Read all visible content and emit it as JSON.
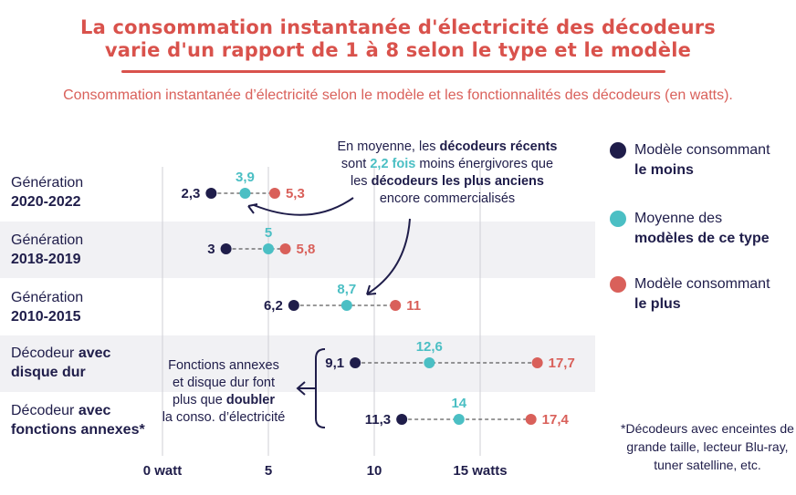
{
  "title_line1": "La consommation instantanée d'électricité des décodeurs",
  "title_line2": "varie d'un rapport de 1 à 8 selon le type et le modèle",
  "subtitle": "Consommation instantanée d’électricité selon le modèle et les fonctionnalités des décodeurs (en watts).",
  "colors": {
    "min": "#1f1d4a",
    "avg": "#4bbfc4",
    "max": "#d9605a",
    "title": "#d9524c",
    "band": "#f1f1f4"
  },
  "rows": [
    {
      "label_a": "Génération",
      "label_b": "2020-2022"
    },
    {
      "label_a": "Génération",
      "label_b": "2018-2019"
    },
    {
      "label_a": "Génération",
      "label_b": "2010-2015"
    },
    {
      "label_a": "Décodeur ",
      "label_a_bold": "avec",
      "label_b": "disque dur"
    },
    {
      "label_a": "Décodeur ",
      "label_a_bold": "avec",
      "label_b": "fonctions annexes*"
    }
  ],
  "legend": [
    {
      "line1": "Modèle consommant",
      "line2": "le moins",
      "bold": 2
    },
    {
      "line1": "Moyenne des",
      "line2": "modèles de ce type",
      "bold": 2
    },
    {
      "line1": "Modèle consommant",
      "line2": "le plus",
      "bold": 2
    }
  ],
  "annotation_top": {
    "p1": "En moyenne, les ",
    "b1": "décodeurs récents",
    "p2": "sont ",
    "t1": "2,2 fois",
    "p3": " moins énergivores que",
    "p4": "les ",
    "b2": "décodeurs les plus anciens",
    "p5": "encore commercialisés"
  },
  "annotation_bottom": {
    "p1": "Fonctions annexes",
    "p2": "et disque dur font",
    "p3": "plus que ",
    "b1": "doubler",
    "p4": "la conso. d’électricité"
  },
  "footnote": "*Décodeurs avec enceintes de grande taille, lecteur Blu-ray, tuner satelline, etc.",
  "chart_data": {
    "type": "scatter",
    "subtype": "dot-range",
    "categories": [
      "Génération 2020-2022",
      "Génération 2018-2019",
      "Génération 2010-2015",
      "Décodeur avec disque dur",
      "Décodeur avec fonctions annexes*"
    ],
    "series": [
      {
        "name": "Modèle consommant le moins",
        "values": [
          2.3,
          3,
          6.2,
          9.1,
          11.3
        ],
        "labels": [
          "2,3",
          "3",
          "6,2",
          "9,1",
          "11,3"
        ]
      },
      {
        "name": "Moyenne des modèles de ce type",
        "values": [
          3.9,
          5,
          8.7,
          12.6,
          14
        ],
        "labels": [
          "3,9",
          "5",
          "8,7",
          "12,6",
          "14"
        ]
      },
      {
        "name": "Modèle consommant le plus",
        "values": [
          5.3,
          5.8,
          11,
          17.7,
          17.4
        ],
        "labels": [
          "5,3",
          "5,8",
          "11",
          "17,7",
          "17,4"
        ]
      }
    ],
    "xticks": [
      0,
      5,
      10,
      15
    ],
    "xtick_labels": [
      "0 watt",
      "5",
      "10",
      "15 watts"
    ],
    "xlim": [
      0,
      18
    ],
    "grid": true,
    "legend_placement": "right"
  }
}
